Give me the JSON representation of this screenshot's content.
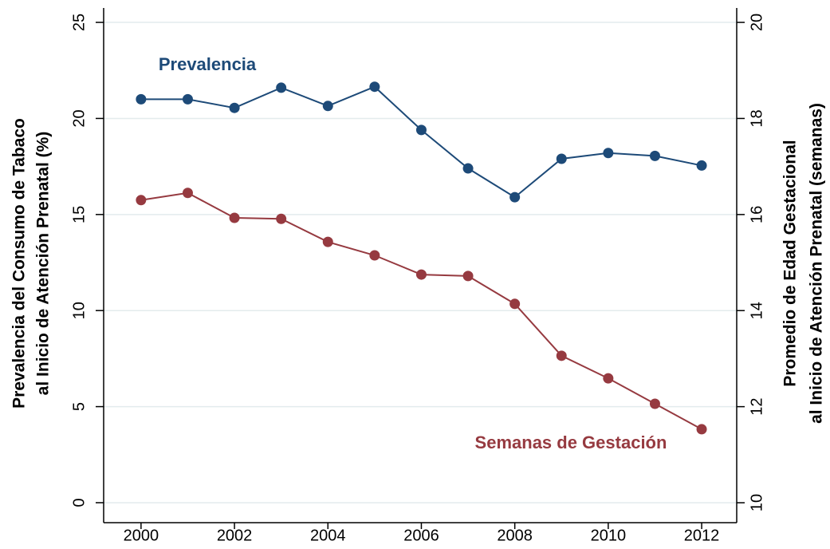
{
  "chart_data": {
    "type": "line",
    "ylabel": [
      "Prevalencia del Consumo de Tabaco",
      "al Inicio de Atención Prenatal (%)"
    ],
    "y2label": [
      "Promedio de Edad Gestacional",
      "al Inicio de Atención Prenatal (semanas)"
    ],
    "annotations": [
      "Prevalencia",
      "Semanas de Gestación"
    ],
    "x": [
      2000,
      2001,
      2002,
      2003,
      2004,
      2005,
      2006,
      2007,
      2008,
      2009,
      2010,
      2011,
      2012
    ],
    "series": [
      {
        "name": "Prevalencia",
        "color": "#1d4a78",
        "axis": "y",
        "values": [
          21.0,
          21.0,
          20.55,
          21.6,
          20.65,
          21.65,
          19.4,
          17.4,
          15.9,
          17.9,
          18.2,
          18.05,
          17.55
        ]
      },
      {
        "name": "Semanas de Gestación",
        "color": "#963a40",
        "axis": "y2",
        "values": [
          16.3,
          16.45,
          15.93,
          15.91,
          15.43,
          15.15,
          14.75,
          14.72,
          14.14,
          13.06,
          12.59,
          12.06,
          11.53
        ]
      }
    ],
    "xlim": [
      1999.2,
      2012.75
    ],
    "xticks": [
      2000,
      2002,
      2004,
      2006,
      2008,
      2010,
      2012
    ],
    "ylim": [
      -1.04,
      25.75
    ],
    "yticks": [
      0,
      5,
      10,
      15,
      20,
      25
    ],
    "y2lim": [
      9.585,
      20.3
    ],
    "y2ticks": [
      10,
      12,
      14,
      16,
      18,
      20
    ],
    "grid": true
  }
}
